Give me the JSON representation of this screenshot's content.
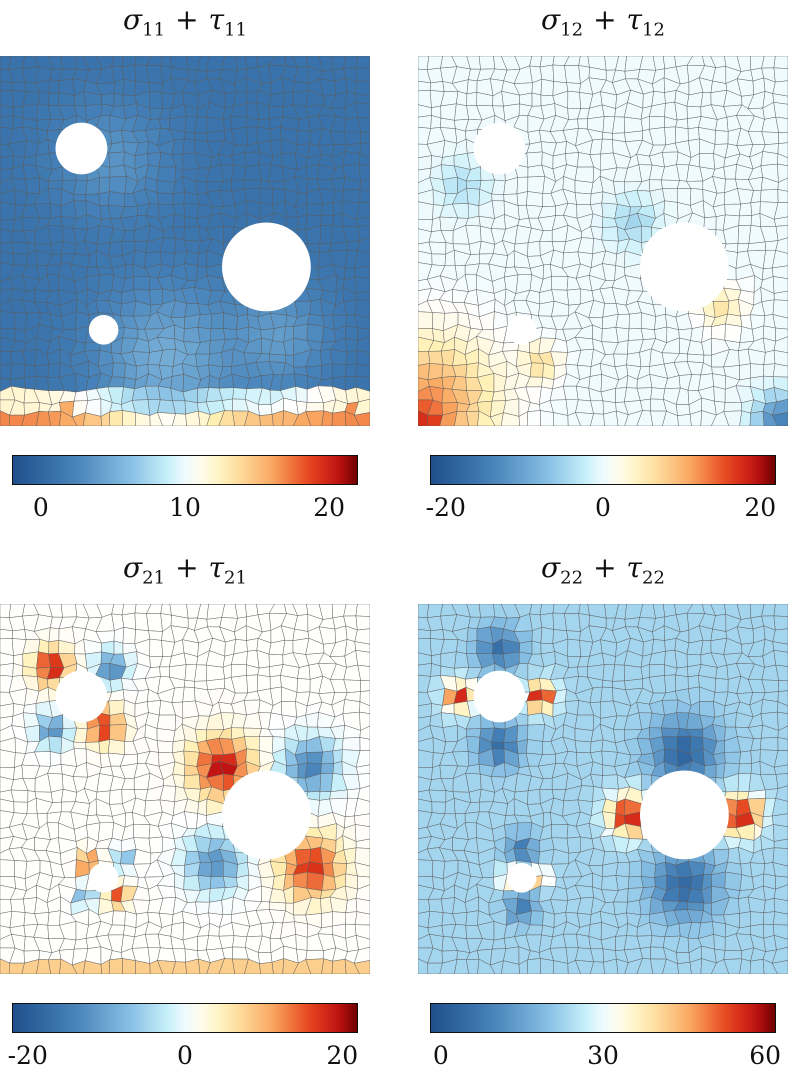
{
  "chart_data": [
    {
      "type": "heatmap",
      "title": {
        "sym": "σ",
        "sub": "11",
        "op": "+",
        "sym2": "τ",
        "sub2": "11"
      },
      "colorbar": {
        "range": [
          -2,
          22
        ],
        "ticks": [
          "0",
          "10",
          "20"
        ],
        "tick_values": [
          0,
          10,
          20
        ]
      },
      "background_value": 1,
      "holes": [
        {
          "cx": 0.22,
          "cy": 0.25,
          "r": 0.07
        },
        {
          "cx": 0.72,
          "cy": 0.57,
          "r": 0.12
        },
        {
          "cx": 0.28,
          "cy": 0.74,
          "r": 0.04
        }
      ],
      "features": [
        {
          "kind": "band",
          "y0": 0.955,
          "y1": 1.0,
          "value": 17
        },
        {
          "kind": "band",
          "y0": 0.9,
          "y1": 0.955,
          "value": 12
        },
        {
          "kind": "blob",
          "cx": 0.45,
          "cy": 0.82,
          "r": 0.25,
          "value": 5
        },
        {
          "kind": "blob",
          "cx": 0.75,
          "cy": 0.76,
          "r": 0.18,
          "value": 4
        },
        {
          "kind": "blob",
          "cx": 0.3,
          "cy": 0.28,
          "r": 0.2,
          "value": 3.5
        }
      ]
    },
    {
      "type": "heatmap",
      "title": {
        "sym": "σ",
        "sub": "12",
        "op": "+",
        "sym2": "τ",
        "sub2": "12"
      },
      "colorbar": {
        "range": [
          -22,
          22
        ],
        "ticks": [
          "-20",
          "0",
          "20"
        ],
        "tick_values": [
          -20,
          0,
          20
        ]
      },
      "background_value": 0,
      "holes": [
        {
          "cx": 0.22,
          "cy": 0.25,
          "r": 0.07
        },
        {
          "cx": 0.72,
          "cy": 0.57,
          "r": 0.12
        },
        {
          "cx": 0.28,
          "cy": 0.74,
          "r": 0.04
        }
      ],
      "features": [
        {
          "kind": "blob",
          "cx": 0.03,
          "cy": 0.94,
          "r": 0.22,
          "value": 12
        },
        {
          "kind": "blob",
          "cx": 0.02,
          "cy": 0.99,
          "r": 0.06,
          "value": 18
        },
        {
          "kind": "blob",
          "cx": 0.98,
          "cy": 0.98,
          "r": 0.08,
          "value": -14
        },
        {
          "kind": "blob",
          "cx": 0.82,
          "cy": 0.68,
          "r": 0.07,
          "value": 6
        },
        {
          "kind": "blob",
          "cx": 0.58,
          "cy": 0.45,
          "r": 0.08,
          "value": -5
        },
        {
          "kind": "blob",
          "cx": 0.33,
          "cy": 0.83,
          "r": 0.06,
          "value": 7
        },
        {
          "kind": "blob",
          "cx": 0.12,
          "cy": 0.35,
          "r": 0.08,
          "value": -4
        }
      ]
    },
    {
      "type": "heatmap",
      "title": {
        "sym": "σ",
        "sub": "21",
        "op": "+",
        "sym2": "τ",
        "sub2": "21"
      },
      "colorbar": {
        "range": [
          -22,
          22
        ],
        "ticks": [
          "-20",
          "0",
          "20"
        ],
        "tick_values": [
          -20,
          0,
          20
        ]
      },
      "background_value": 1,
      "holes": [
        {
          "cx": 0.22,
          "cy": 0.25,
          "r": 0.07
        },
        {
          "cx": 0.72,
          "cy": 0.57,
          "r": 0.12
        },
        {
          "cx": 0.28,
          "cy": 0.74,
          "r": 0.04
        }
      ],
      "features": [
        {
          "kind": "blob",
          "cx": 0.14,
          "cy": 0.17,
          "r": 0.06,
          "value": 20
        },
        {
          "kind": "blob",
          "cx": 0.28,
          "cy": 0.33,
          "r": 0.06,
          "value": 18
        },
        {
          "kind": "blob",
          "cx": 0.3,
          "cy": 0.17,
          "r": 0.05,
          "value": -14
        },
        {
          "kind": "blob",
          "cx": 0.14,
          "cy": 0.34,
          "r": 0.05,
          "value": -13
        },
        {
          "kind": "blob",
          "cx": 0.6,
          "cy": 0.44,
          "r": 0.1,
          "value": 20
        },
        {
          "kind": "blob",
          "cx": 0.84,
          "cy": 0.71,
          "r": 0.1,
          "value": 18
        },
        {
          "kind": "blob",
          "cx": 0.84,
          "cy": 0.44,
          "r": 0.09,
          "value": -14
        },
        {
          "kind": "blob",
          "cx": 0.58,
          "cy": 0.7,
          "r": 0.09,
          "value": -12
        },
        {
          "kind": "blob",
          "cx": 0.24,
          "cy": 0.7,
          "r": 0.035,
          "value": 17
        },
        {
          "kind": "blob",
          "cx": 0.32,
          "cy": 0.79,
          "r": 0.035,
          "value": 16
        },
        {
          "kind": "blob",
          "cx": 0.33,
          "cy": 0.69,
          "r": 0.03,
          "value": -10
        },
        {
          "kind": "blob",
          "cx": 0.23,
          "cy": 0.79,
          "r": 0.03,
          "value": -10
        },
        {
          "kind": "band",
          "y0": 0.96,
          "y1": 1.0,
          "value": 8
        }
      ]
    },
    {
      "type": "heatmap",
      "title": {
        "sym": "σ",
        "sub": "22",
        "op": "+",
        "sym2": "τ",
        "sub2": "22"
      },
      "colorbar": {
        "range": [
          -2,
          62
        ],
        "ticks": [
          "0",
          "30",
          "60"
        ],
        "tick_values": [
          0,
          30,
          60
        ]
      },
      "background_value": 23,
      "holes": [
        {
          "cx": 0.22,
          "cy": 0.25,
          "r": 0.07
        },
        {
          "cx": 0.72,
          "cy": 0.57,
          "r": 0.12
        },
        {
          "cx": 0.28,
          "cy": 0.74,
          "r": 0.04
        }
      ],
      "features": [
        {
          "kind": "blob",
          "cx": 0.11,
          "cy": 0.25,
          "r": 0.05,
          "value": 58
        },
        {
          "kind": "blob",
          "cx": 0.33,
          "cy": 0.25,
          "r": 0.05,
          "value": 58
        },
        {
          "kind": "blob",
          "cx": 0.22,
          "cy": 0.12,
          "r": 0.07,
          "value": 5
        },
        {
          "kind": "blob",
          "cx": 0.22,
          "cy": 0.38,
          "r": 0.07,
          "value": 5
        },
        {
          "kind": "blob",
          "cx": 0.57,
          "cy": 0.57,
          "r": 0.07,
          "value": 60
        },
        {
          "kind": "blob",
          "cx": 0.87,
          "cy": 0.57,
          "r": 0.07,
          "value": 60
        },
        {
          "kind": "blob",
          "cx": 0.72,
          "cy": 0.4,
          "r": 0.11,
          "value": 3
        },
        {
          "kind": "blob",
          "cx": 0.72,
          "cy": 0.76,
          "r": 0.11,
          "value": 4
        },
        {
          "kind": "blob",
          "cx": 0.24,
          "cy": 0.74,
          "r": 0.03,
          "value": 50
        },
        {
          "kind": "blob",
          "cx": 0.33,
          "cy": 0.74,
          "r": 0.03,
          "value": 50
        },
        {
          "kind": "blob",
          "cx": 0.28,
          "cy": 0.66,
          "r": 0.05,
          "value": 8
        },
        {
          "kind": "blob",
          "cx": 0.28,
          "cy": 0.82,
          "r": 0.05,
          "value": 8
        }
      ]
    }
  ]
}
